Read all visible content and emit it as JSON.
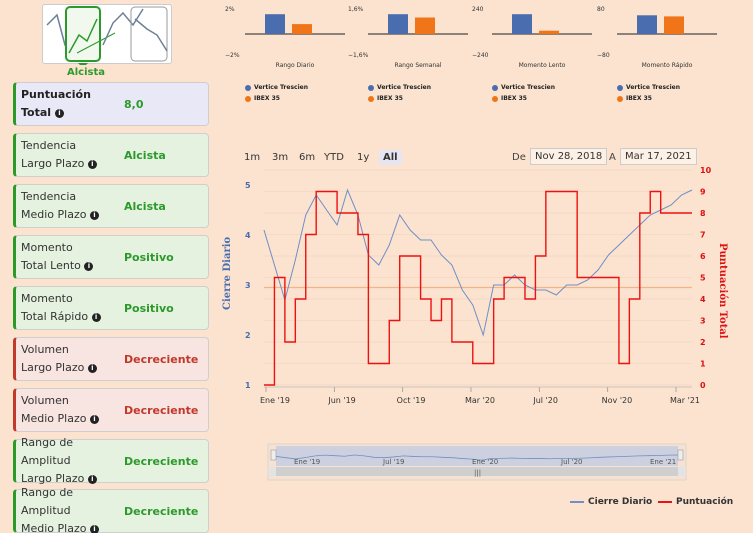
{
  "logo": {
    "label": "Alcista"
  },
  "cards": [
    {
      "label_line1": "Puntuación",
      "label_line2": "Total",
      "value": "8,0",
      "status": "total"
    },
    {
      "label_line1": "Tendencia",
      "label_line2": "Largo Plazo",
      "value": "Alcista",
      "status": "green"
    },
    {
      "label_line1": "Tendencia",
      "label_line2": "Medio Plazo",
      "value": "Alcista",
      "status": "green"
    },
    {
      "label_line1": "Momento",
      "label_line2": "Total Lento",
      "value": "Positivo",
      "status": "green"
    },
    {
      "label_line1": "Momento",
      "label_line2": "Total Rápido",
      "value": "Positivo",
      "status": "green"
    },
    {
      "label_line1": "Volumen",
      "label_line2": "Largo Plazo",
      "value": "Decreciente",
      "status": "red"
    },
    {
      "label_line1": "Volumen",
      "label_line2": "Medio Plazo",
      "value": "Decreciente",
      "status": "red"
    },
    {
      "label_line1": "Rango de Amplitud",
      "label_line2": "Largo Plazo",
      "value": "Decreciente",
      "status": "green"
    },
    {
      "label_line1": "Rango de Amplitud",
      "label_line2": "Medio Plazo",
      "value": "Decreciente",
      "status": "green"
    }
  ],
  "mini_charts": [
    {
      "name": "Rango Diario",
      "top_tick": "2%",
      "bottom_tick": "−2%",
      "legend1": "Vertice Trescien",
      "legend2": "IBEX 35",
      "v1": 0.9,
      "v2": 0.45
    },
    {
      "name": "Rango Semanal",
      "top_tick": "1,6%",
      "bottom_tick": "−1,6%",
      "legend1": "Vertice Trescien",
      "legend2": "IBEX 35",
      "v1": 0.9,
      "v2": 0.75
    },
    {
      "name": "Momento Lento",
      "top_tick": "240",
      "bottom_tick": "−240",
      "legend1": "Vertice Trescien",
      "legend2": "IBEX 35",
      "v1": 0.9,
      "v2": 0.15
    },
    {
      "name": "Momento Rápido",
      "top_tick": "80",
      "bottom_tick": "−80",
      "legend1": "Vertice Trescien",
      "legend2": "IBEX 35",
      "v1": 0.85,
      "v2": 0.8
    }
  ],
  "range_selector": {
    "buttons": [
      "1m",
      "3m",
      "6m",
      "YTD",
      "1y",
      "All"
    ],
    "active": "All",
    "from_label": "De",
    "from_value": "Nov 28, 2018",
    "to_label": "A",
    "to_value": "Mar 17, 2021"
  },
  "colors": {
    "series1": "#6f8fc6",
    "series2": "#ee1111",
    "ref_line": "#f2b48a",
    "green": "#2b9a2b",
    "red": "#c0392b"
  },
  "chart_data": {
    "type": "line",
    "title": "",
    "xlabel": "",
    "ylabel_left": "Cierre Diario",
    "ylabel_right": "Puntuación Total",
    "x_ticks": [
      "Ene '19",
      "Jun '19",
      "Oct '19",
      "Mar '20",
      "Jul '20",
      "Nov '20",
      "Mar '21"
    ],
    "y_left_ticks": [
      "1",
      "2",
      "3",
      "4",
      "5"
    ],
    "y_right_ticks": [
      "0",
      "1",
      "2",
      "3",
      "4",
      "5",
      "6",
      "7",
      "8",
      "9",
      "10"
    ],
    "ylim_left": [
      1,
      5
    ],
    "ylim_right": [
      0,
      10
    ],
    "ref_line_left": 2.95,
    "series": [
      {
        "name": "Cierre Diario",
        "axis": "left",
        "values": [
          4.1,
          3.4,
          2.7,
          3.5,
          4.4,
          4.8,
          4.5,
          4.2,
          4.9,
          4.4,
          3.6,
          3.4,
          3.8,
          4.4,
          4.1,
          3.9,
          3.9,
          3.6,
          3.4,
          2.9,
          2.6,
          2.0,
          3.0,
          3.0,
          3.2,
          3.0,
          2.9,
          2.9,
          2.8,
          3.0,
          3.0,
          3.1,
          3.3,
          3.6,
          3.8,
          4.0,
          4.2,
          4.4,
          4.5,
          4.6,
          4.8,
          4.9
        ]
      },
      {
        "name": "Puntuación",
        "axis": "right",
        "values": [
          0,
          5,
          2,
          4,
          7,
          9,
          9,
          8,
          8,
          7,
          1,
          1,
          3,
          6,
          6,
          4,
          3,
          4,
          2,
          2,
          1,
          1,
          4,
          5,
          5,
          4,
          6,
          9,
          9,
          9,
          5,
          5,
          5,
          5,
          1,
          4,
          8,
          9,
          8,
          8,
          8,
          8
        ]
      }
    ],
    "navigator_ticks": [
      "Ene '19",
      "Jul '19",
      "Ene '20",
      "Jul '20",
      "Ene '21"
    ],
    "legend": [
      "Cierre Diario",
      "Puntuación"
    ]
  }
}
